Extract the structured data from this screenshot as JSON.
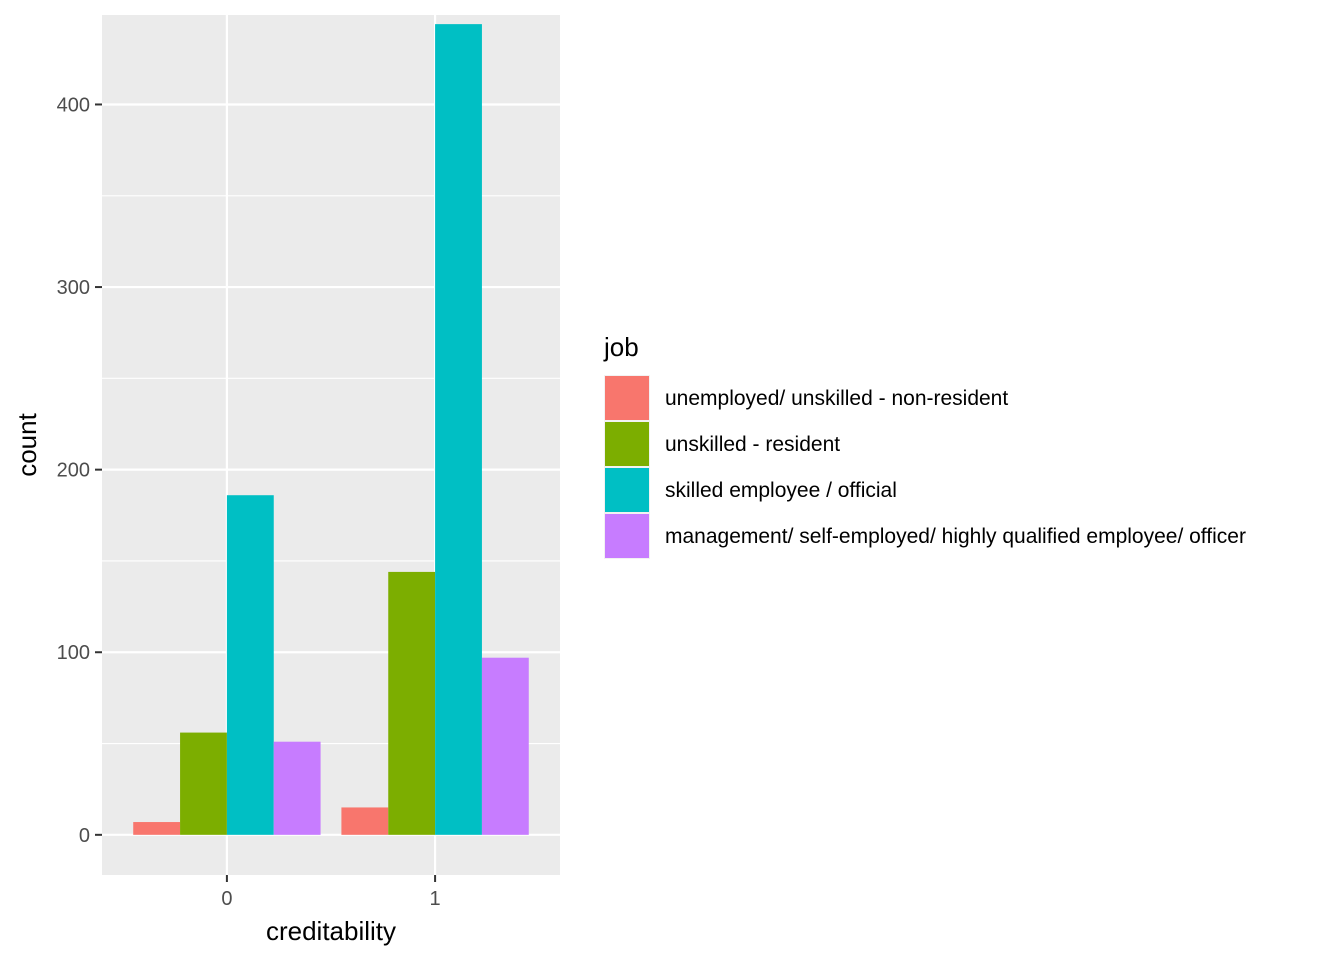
{
  "chart_data": {
    "type": "bar",
    "xlabel": "creditability",
    "ylabel": "count",
    "categories": [
      "0",
      "1"
    ],
    "ylim": [
      -22,
      449
    ],
    "yticks": [
      0,
      100,
      200,
      300,
      400
    ],
    "grid": true,
    "legend_title": "job",
    "legend_position": "right",
    "series": [
      {
        "name": "unemployed/ unskilled - non-resident",
        "color": "#F8766D",
        "values": [
          7,
          15
        ]
      },
      {
        "name": "unskilled - resident",
        "color": "#7CAE00",
        "values": [
          56,
          144
        ]
      },
      {
        "name": "skilled employee / official",
        "color": "#00BFC4",
        "values": [
          186,
          444
        ]
      },
      {
        "name": "management/ self-employed/ highly qualified employee/ officer",
        "color": "#C77CFF",
        "values": [
          51,
          97
        ]
      }
    ]
  }
}
